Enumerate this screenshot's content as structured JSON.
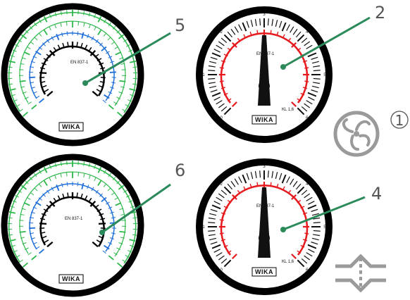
{
  "callouts": [
    "5",
    "2",
    "1",
    "6",
    "4"
  ],
  "gauge_2": {
    "scale_labels": [
      "0",
      "1",
      "2",
      "3",
      "4",
      "5",
      "6"
    ],
    "model_text": "EN 837-1",
    "class_text": "KL 1,6",
    "brand": "WIKA",
    "ring_color": "#e8191d",
    "needle_value": 3
  },
  "gauge_4": {
    "scale_labels": [
      "0",
      "1",
      "2",
      "3",
      "4",
      "5",
      "6"
    ],
    "model_text": "EN 837-1",
    "class_text": "KL 1,6",
    "brand": "WIKA",
    "ring_color": "#e8191d",
    "needle_value": 3
  },
  "gauge_5": {
    "model_text": "EN 837-1",
    "brand": "WIKA",
    "scale_colors": [
      "#000000",
      "#1e6fd9",
      "#2db84b"
    ]
  },
  "gauge_6": {
    "model_text": "EN 837-1",
    "brand": "WIKA",
    "scale_colors": [
      "#000000",
      "#1e6fd9",
      "#2db84b"
    ]
  },
  "leader_color": "#2a8a5a",
  "icons": [
    "fan-icon",
    "valve-icon"
  ]
}
